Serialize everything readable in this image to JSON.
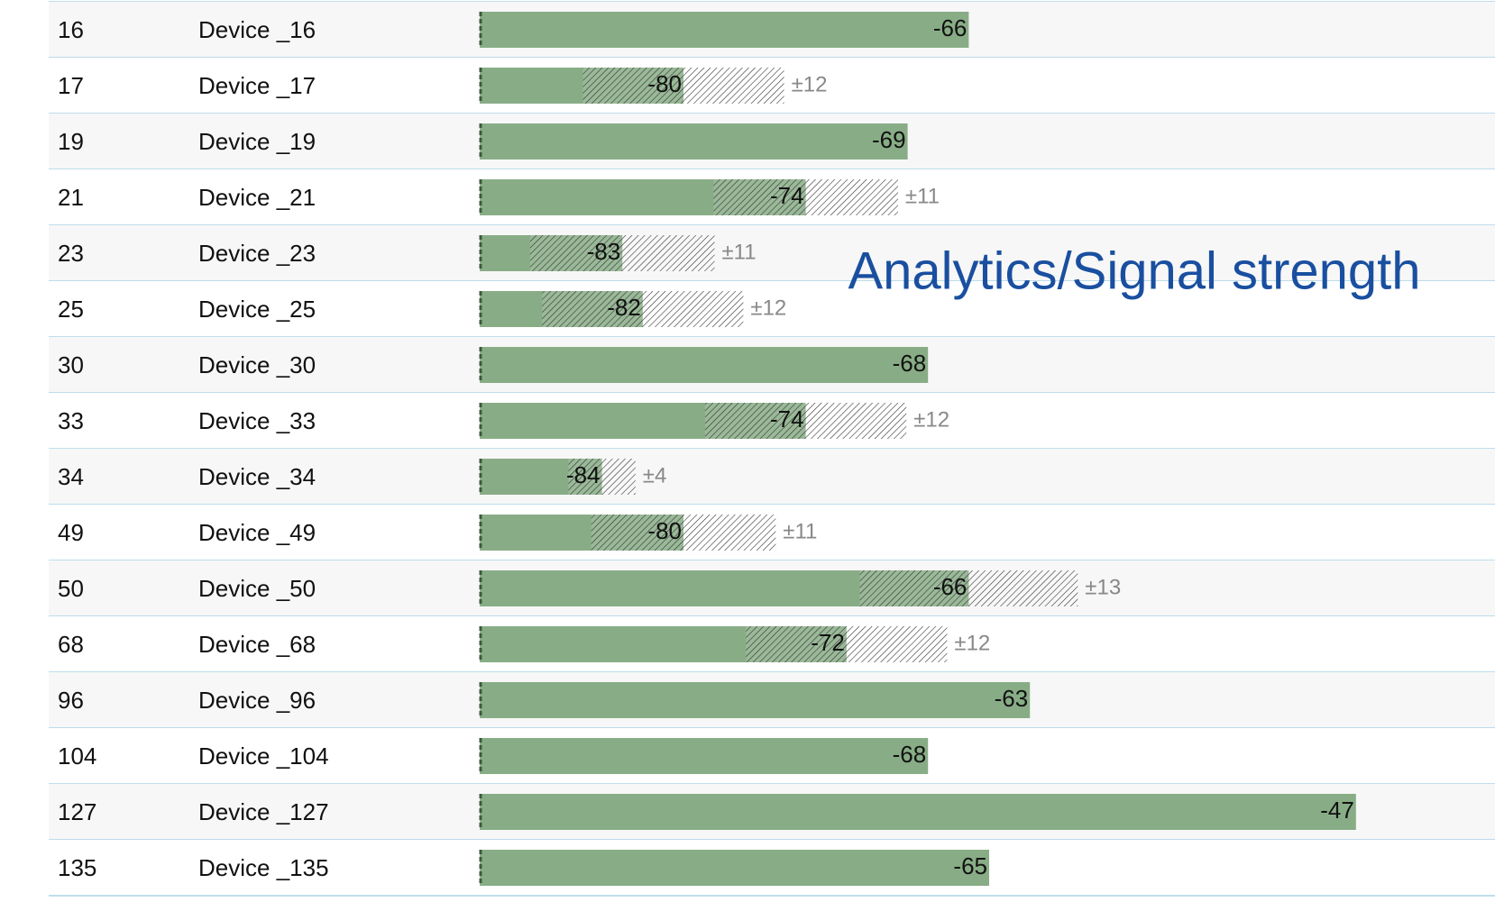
{
  "title": "Analytics/Signal  strength",
  "rows": [
    {
      "id": "16",
      "name": "Device _16",
      "value": -66
    },
    {
      "id": "17",
      "name": "Device _17",
      "value": -80,
      "error": 12,
      "error_label": "±12"
    },
    {
      "id": "19",
      "name": "Device _19",
      "value": -69
    },
    {
      "id": "21",
      "name": "Device _21",
      "value": -74,
      "error": 11,
      "error_label": "±11"
    },
    {
      "id": "23",
      "name": "Device _23",
      "value": -83,
      "error": 11,
      "error_label": "±11"
    },
    {
      "id": "25",
      "name": "Device _25",
      "value": -82,
      "error": 12,
      "error_label": "±12"
    },
    {
      "id": "30",
      "name": "Device _30",
      "value": -68
    },
    {
      "id": "33",
      "name": "Device _33",
      "value": -74,
      "error": 12,
      "error_label": "±12"
    },
    {
      "id": "34",
      "name": "Device _34",
      "value": -84,
      "error": 4,
      "error_label": "±4"
    },
    {
      "id": "49",
      "name": "Device _49",
      "value": -80,
      "error": 11,
      "error_label": "±11"
    },
    {
      "id": "50",
      "name": "Device _50",
      "value": -66,
      "error": 13,
      "error_label": "±13"
    },
    {
      "id": "68",
      "name": "Device _68",
      "value": -72,
      "error": 12,
      "error_label": "±12"
    },
    {
      "id": "96",
      "name": "Device _96",
      "value": -63
    },
    {
      "id": "104",
      "name": "Device _104",
      "value": -68
    },
    {
      "id": "127",
      "name": "Device _127",
      "value": -47
    },
    {
      "id": "135",
      "name": "Device _135",
      "value": -65
    }
  ]
}
